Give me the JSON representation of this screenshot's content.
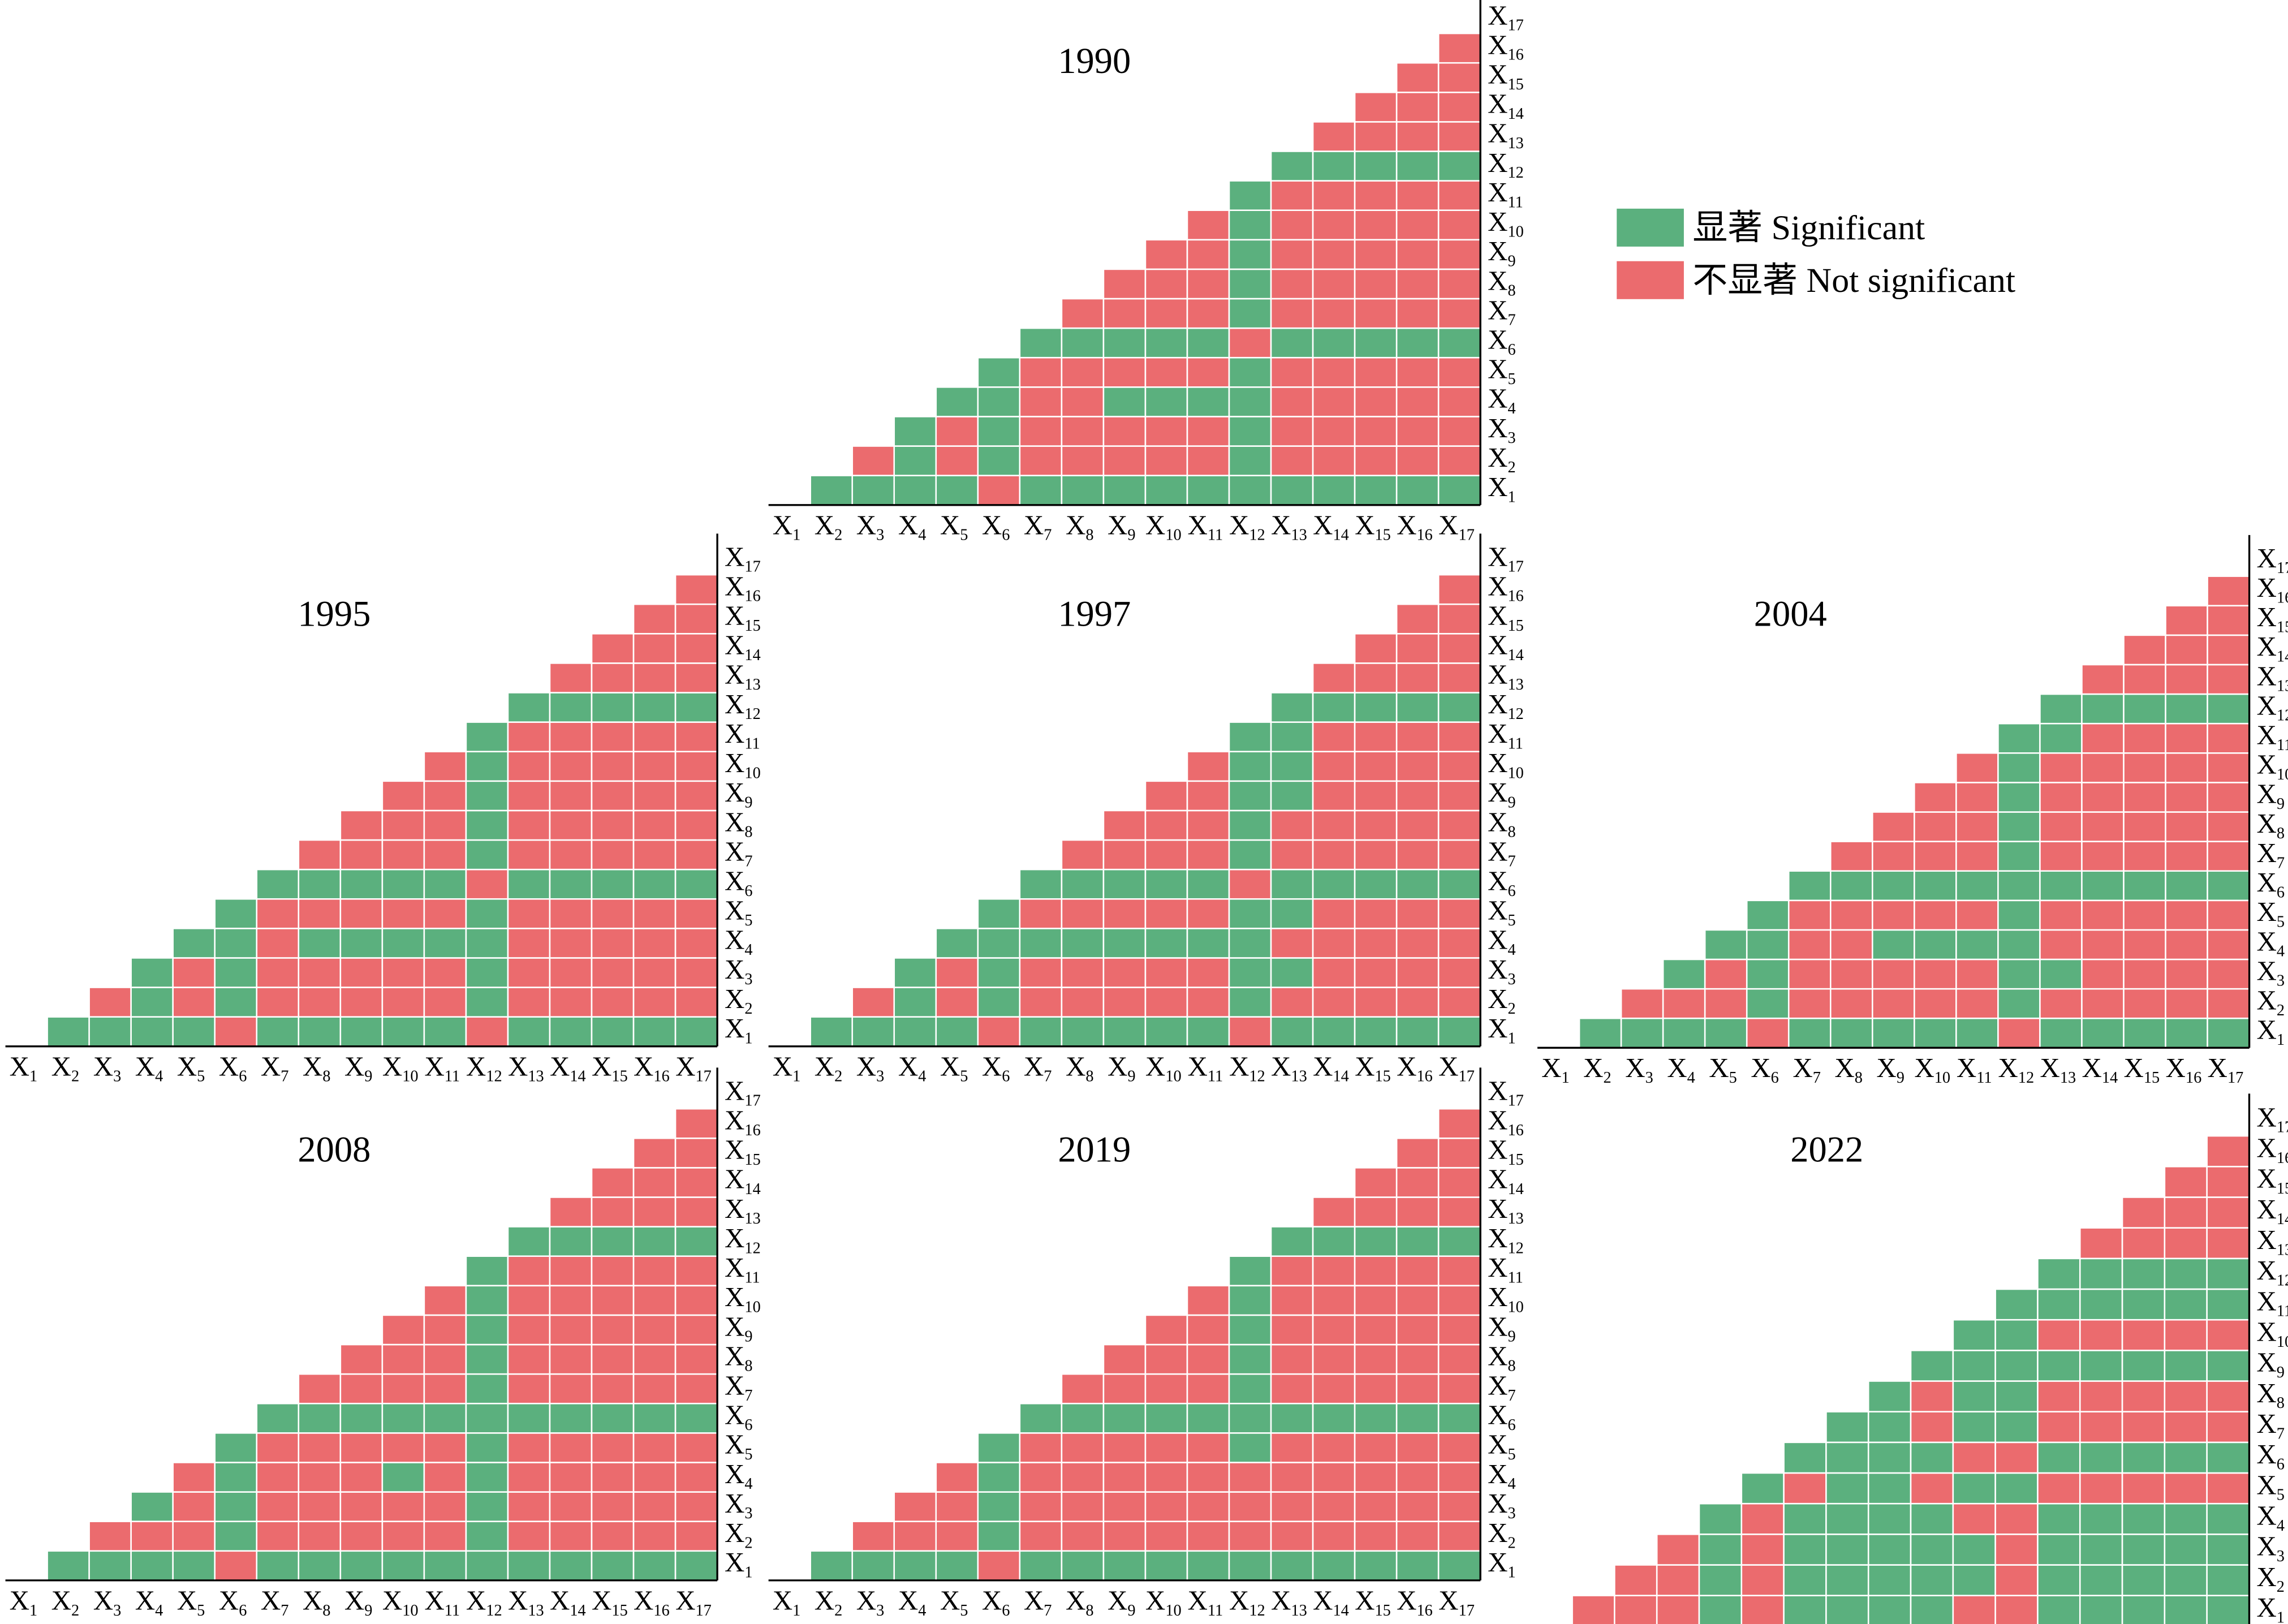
{
  "axis_symbol": "X",
  "axis_indices": [
    "1",
    "2",
    "3",
    "4",
    "5",
    "6",
    "7",
    "8",
    "9",
    "10",
    "11",
    "12",
    "13",
    "14",
    "15",
    "16",
    "17"
  ],
  "legend": [
    {
      "label": "显著 Significant",
      "color": "#5bb07e"
    },
    {
      "label": "不显著 Not significant",
      "color": "#eb6b6e"
    }
  ],
  "panels": [
    {
      "title": "1990",
      "rows": [
        [
          1,
          1,
          1,
          1,
          0,
          1,
          1,
          1,
          1,
          1,
          1,
          1,
          1,
          1,
          1,
          1
        ],
        [
          0,
          1,
          0,
          1,
          0,
          0,
          0,
          0,
          0,
          1,
          0,
          0,
          0,
          0,
          0
        ],
        [
          1,
          0,
          1,
          0,
          0,
          0,
          0,
          0,
          1,
          0,
          0,
          0,
          0,
          0
        ],
        [
          1,
          1,
          0,
          0,
          1,
          1,
          1,
          1,
          0,
          0,
          0,
          0,
          0
        ],
        [
          1,
          0,
          0,
          0,
          0,
          0,
          1,
          0,
          0,
          0,
          0,
          0
        ],
        [
          1,
          1,
          1,
          1,
          1,
          0,
          1,
          1,
          1,
          1,
          1
        ],
        [
          0,
          0,
          0,
          0,
          1,
          0,
          0,
          0,
          0,
          0
        ],
        [
          0,
          0,
          0,
          1,
          0,
          0,
          0,
          0,
          0
        ],
        [
          0,
          0,
          1,
          0,
          0,
          0,
          0,
          0
        ],
        [
          0,
          1,
          0,
          0,
          0,
          0,
          0
        ],
        [
          1,
          0,
          0,
          0,
          0,
          0
        ],
        [
          1,
          1,
          1,
          1,
          1
        ],
        [
          0,
          0,
          0,
          0
        ],
        [
          0,
          0,
          0
        ],
        [
          0,
          0
        ],
        [
          0
        ]
      ]
    },
    {
      "title": "1995",
      "rows": [
        [
          1,
          1,
          1,
          1,
          0,
          1,
          1,
          1,
          1,
          1,
          0,
          1,
          1,
          1,
          1,
          1
        ],
        [
          0,
          1,
          0,
          1,
          0,
          0,
          0,
          0,
          0,
          1,
          0,
          0,
          0,
          0,
          0
        ],
        [
          1,
          0,
          1,
          0,
          0,
          0,
          0,
          0,
          1,
          0,
          0,
          0,
          0,
          0
        ],
        [
          1,
          1,
          0,
          1,
          1,
          1,
          1,
          1,
          0,
          0,
          0,
          0,
          0
        ],
        [
          1,
          0,
          0,
          0,
          0,
          0,
          1,
          0,
          0,
          0,
          0,
          0
        ],
        [
          1,
          1,
          1,
          1,
          1,
          0,
          1,
          1,
          1,
          1,
          1
        ],
        [
          0,
          0,
          0,
          0,
          1,
          0,
          0,
          0,
          0,
          0
        ],
        [
          0,
          0,
          0,
          1,
          0,
          0,
          0,
          0,
          0
        ],
        [
          0,
          0,
          1,
          0,
          0,
          0,
          0,
          0
        ],
        [
          0,
          1,
          0,
          0,
          0,
          0,
          0
        ],
        [
          1,
          0,
          0,
          0,
          0,
          0
        ],
        [
          1,
          1,
          1,
          1,
          1
        ],
        [
          0,
          0,
          0,
          0
        ],
        [
          0,
          0,
          0
        ],
        [
          0,
          0
        ],
        [
          0
        ]
      ]
    },
    {
      "title": "1997",
      "rows": [
        [
          1,
          1,
          1,
          1,
          0,
          1,
          1,
          1,
          1,
          1,
          0,
          1,
          1,
          1,
          1,
          1
        ],
        [
          0,
          1,
          0,
          1,
          0,
          0,
          0,
          0,
          0,
          1,
          0,
          0,
          0,
          0,
          0
        ],
        [
          1,
          0,
          1,
          0,
          0,
          0,
          0,
          0,
          1,
          1,
          0,
          0,
          0,
          0
        ],
        [
          1,
          1,
          1,
          1,
          1,
          1,
          1,
          1,
          0,
          0,
          0,
          0,
          0
        ],
        [
          1,
          0,
          0,
          0,
          0,
          0,
          1,
          1,
          0,
          0,
          0,
          0
        ],
        [
          1,
          1,
          1,
          1,
          1,
          0,
          1,
          1,
          1,
          1,
          1
        ],
        [
          0,
          0,
          0,
          0,
          1,
          0,
          0,
          0,
          0,
          0
        ],
        [
          0,
          0,
          0,
          1,
          0,
          0,
          0,
          0,
          0
        ],
        [
          0,
          0,
          1,
          1,
          0,
          0,
          0,
          0
        ],
        [
          0,
          1,
          1,
          0,
          0,
          0,
          0
        ],
        [
          1,
          1,
          0,
          0,
          0,
          0
        ],
        [
          1,
          1,
          1,
          1,
          1
        ],
        [
          0,
          0,
          0,
          0
        ],
        [
          0,
          0,
          0
        ],
        [
          0,
          0
        ],
        [
          0
        ]
      ]
    },
    {
      "title": "2004",
      "rows": [
        [
          1,
          1,
          1,
          1,
          0,
          1,
          1,
          1,
          1,
          1,
          0,
          1,
          1,
          1,
          1,
          1
        ],
        [
          0,
          0,
          0,
          1,
          0,
          0,
          0,
          0,
          0,
          1,
          0,
          0,
          0,
          0,
          0
        ],
        [
          1,
          0,
          1,
          0,
          0,
          0,
          0,
          0,
          1,
          1,
          0,
          0,
          0,
          0
        ],
        [
          1,
          1,
          0,
          0,
          1,
          1,
          1,
          1,
          0,
          0,
          0,
          0,
          0
        ],
        [
          1,
          0,
          0,
          0,
          0,
          0,
          1,
          0,
          0,
          0,
          0,
          0
        ],
        [
          1,
          1,
          1,
          1,
          1,
          1,
          1,
          1,
          1,
          1,
          1
        ],
        [
          0,
          0,
          0,
          0,
          1,
          0,
          0,
          0,
          0,
          0
        ],
        [
          0,
          0,
          0,
          1,
          0,
          0,
          0,
          0,
          0
        ],
        [
          0,
          0,
          1,
          0,
          0,
          0,
          0,
          0
        ],
        [
          0,
          1,
          0,
          0,
          0,
          0,
          0
        ],
        [
          1,
          1,
          0,
          0,
          0,
          0
        ],
        [
          1,
          1,
          1,
          1,
          1
        ],
        [
          0,
          0,
          0,
          0
        ],
        [
          0,
          0,
          0
        ],
        [
          0,
          0
        ],
        [
          0
        ]
      ]
    },
    {
      "title": "2008",
      "rows": [
        [
          1,
          1,
          1,
          1,
          0,
          1,
          1,
          1,
          1,
          1,
          1,
          1,
          1,
          1,
          1,
          1
        ],
        [
          0,
          0,
          0,
          1,
          0,
          0,
          0,
          0,
          0,
          1,
          0,
          0,
          0,
          0,
          0
        ],
        [
          1,
          0,
          1,
          0,
          0,
          0,
          0,
          0,
          1,
          0,
          0,
          0,
          0,
          0
        ],
        [
          0,
          1,
          0,
          0,
          0,
          1,
          0,
          1,
          0,
          0,
          0,
          0,
          0
        ],
        [
          1,
          0,
          0,
          0,
          0,
          0,
          1,
          0,
          0,
          0,
          0,
          0
        ],
        [
          1,
          1,
          1,
          1,
          1,
          1,
          1,
          1,
          1,
          1,
          1
        ],
        [
          0,
          0,
          0,
          0,
          1,
          0,
          0,
          0,
          0,
          0
        ],
        [
          0,
          0,
          0,
          1,
          0,
          0,
          0,
          0,
          0
        ],
        [
          0,
          0,
          1,
          0,
          0,
          0,
          0,
          0
        ],
        [
          0,
          1,
          0,
          0,
          0,
          0,
          0
        ],
        [
          1,
          0,
          0,
          0,
          0,
          0
        ],
        [
          1,
          1,
          1,
          1,
          1
        ],
        [
          0,
          0,
          0,
          0
        ],
        [
          0,
          0,
          0
        ],
        [
          0,
          0
        ],
        [
          0
        ]
      ]
    },
    {
      "title": "2019",
      "rows": [
        [
          1,
          1,
          1,
          1,
          0,
          1,
          1,
          1,
          1,
          1,
          1,
          1,
          1,
          1,
          1,
          1
        ],
        [
          0,
          0,
          0,
          1,
          0,
          0,
          0,
          0,
          0,
          0,
          0,
          0,
          0,
          0,
          0
        ],
        [
          0,
          0,
          1,
          0,
          0,
          0,
          0,
          0,
          0,
          0,
          0,
          0,
          0,
          0
        ],
        [
          0,
          1,
          0,
          0,
          0,
          0,
          0,
          0,
          0,
          0,
          0,
          0,
          0
        ],
        [
          1,
          0,
          0,
          0,
          0,
          0,
          1,
          0,
          0,
          0,
          0,
          0
        ],
        [
          1,
          1,
          1,
          1,
          1,
          1,
          1,
          1,
          1,
          1,
          1
        ],
        [
          0,
          0,
          0,
          0,
          1,
          0,
          0,
          0,
          0,
          0
        ],
        [
          0,
          0,
          0,
          1,
          0,
          0,
          0,
          0,
          0
        ],
        [
          0,
          0,
          1,
          0,
          0,
          0,
          0,
          0
        ],
        [
          0,
          1,
          0,
          0,
          0,
          0,
          0
        ],
        [
          1,
          0,
          0,
          0,
          0,
          0
        ],
        [
          1,
          1,
          1,
          1,
          1
        ],
        [
          0,
          0,
          0,
          0
        ],
        [
          0,
          0,
          0
        ],
        [
          0,
          0
        ],
        [
          0
        ]
      ]
    },
    {
      "title": "2022",
      "rows": [
        [
          0,
          0,
          0,
          1,
          0,
          1,
          1,
          1,
          1,
          0,
          0,
          1,
          1,
          1,
          1,
          1
        ],
        [
          0,
          0,
          1,
          0,
          1,
          1,
          1,
          1,
          1,
          0,
          1,
          1,
          1,
          1,
          1
        ],
        [
          0,
          1,
          0,
          1,
          1,
          1,
          1,
          1,
          0,
          1,
          1,
          1,
          1,
          1
        ],
        [
          1,
          0,
          1,
          1,
          1,
          1,
          0,
          0,
          1,
          1,
          1,
          1,
          1
        ],
        [
          1,
          0,
          1,
          1,
          0,
          1,
          1,
          0,
          0,
          0,
          0,
          0
        ],
        [
          1,
          1,
          1,
          1,
          0,
          0,
          1,
          1,
          1,
          1,
          1
        ],
        [
          1,
          1,
          0,
          1,
          1,
          0,
          0,
          0,
          0,
          0
        ],
        [
          1,
          0,
          1,
          1,
          0,
          0,
          0,
          0,
          0
        ],
        [
          1,
          1,
          1,
          1,
          1,
          1,
          1,
          1
        ],
        [
          1,
          1,
          0,
          0,
          0,
          0,
          0
        ],
        [
          1,
          1,
          1,
          1,
          1,
          1
        ],
        [
          1,
          1,
          1,
          1,
          1
        ],
        [
          0,
          0,
          0,
          0
        ],
        [
          0,
          0,
          0
        ],
        [
          0,
          0
        ],
        [
          0
        ]
      ]
    }
  ]
}
